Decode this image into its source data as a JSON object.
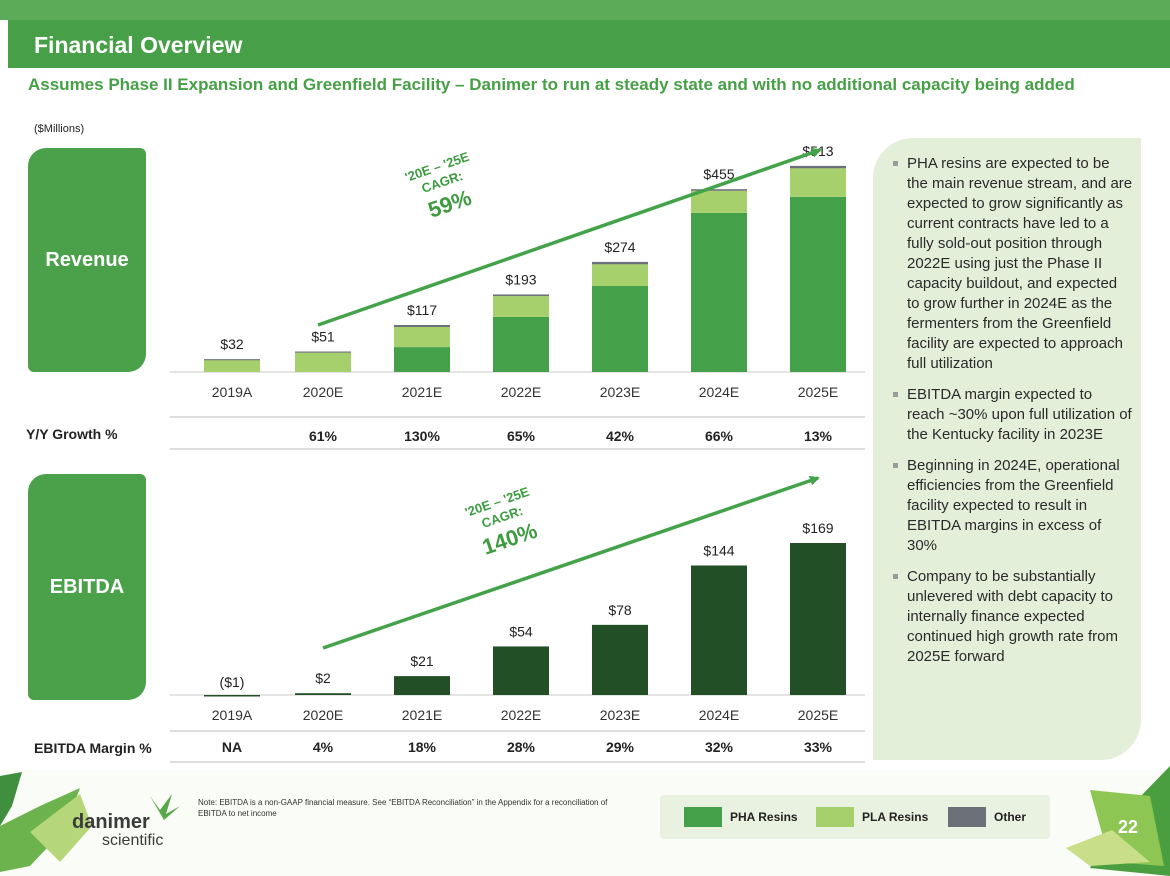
{
  "header": {
    "title": "Financial Overview",
    "subtitle": "Assumes Phase II Expansion and Greenfield Facility – Danimer to run at steady state and with no additional capacity being added",
    "units": "($Millions)"
  },
  "chart_data": [
    {
      "type": "bar",
      "stacked": true,
      "section_label": "Revenue",
      "categories": [
        "2019A",
        "2020E",
        "2021E",
        "2022E",
        "2023E",
        "2024E",
        "2025E"
      ],
      "totals": [
        32,
        51,
        117,
        193,
        274,
        455,
        513
      ],
      "total_labels": [
        "$32",
        "$51",
        "$117",
        "$193",
        "$274",
        "$455",
        "$513"
      ],
      "series": [
        {
          "name": "PHA Resins",
          "color": "#45a04a",
          "values": [
            0,
            0,
            62,
            137,
            214,
            396,
            436
          ]
        },
        {
          "name": "PLA Resins",
          "color": "#a6d06b",
          "values": [
            29,
            48,
            50,
            52,
            54,
            55,
            71
          ]
        },
        {
          "name": "Other",
          "color": "#6c7078",
          "values": [
            3,
            3,
            5,
            4,
            6,
            4,
            6
          ]
        }
      ],
      "ylim": [
        0,
        560
      ],
      "cagr": {
        "line1": "'20E – '25E",
        "line2": "CAGR:",
        "value": "59%"
      },
      "growth_row": {
        "label": "Y/Y Growth %",
        "values": [
          "",
          "61%",
          "130%",
          "65%",
          "42%",
          "66%",
          "13%"
        ]
      }
    },
    {
      "type": "bar",
      "section_label": "EBITDA",
      "categories": [
        "2019A",
        "2020E",
        "2021E",
        "2022E",
        "2023E",
        "2024E",
        "2025E"
      ],
      "values": [
        -1,
        2,
        21,
        54,
        78,
        144,
        169
      ],
      "value_labels": [
        "($1)",
        "$2",
        "$21",
        "$54",
        "$78",
        "$144",
        "$169"
      ],
      "color": "#234f27",
      "ylim": [
        -2,
        185
      ],
      "cagr": {
        "line1": "'20E – '25E",
        "line2": "CAGR:",
        "value": "140%"
      },
      "margin_row": {
        "label": "EBITDA Margin %",
        "values": [
          "NA",
          "4%",
          "18%",
          "28%",
          "29%",
          "32%",
          "33%"
        ]
      }
    }
  ],
  "bullets": [
    "PHA resins are expected to be the main revenue stream, and are expected to grow significantly as current contracts have led to a fully sold-out position through 2022E using just the Phase II capacity buildout, and expected to grow further in 2024E as the fermenters from the Greenfield facility are expected to approach full utilization",
    "EBITDA margin expected to reach ~30% upon full utilization of the Kentucky facility in 2023E",
    "Beginning in 2024E, operational efficiencies from the Greenfield facility expected to result in EBITDA margins in excess of 30%",
    "Company to be substantially unlevered with debt capacity to internally finance expected continued high growth rate from 2025E forward"
  ],
  "footer": {
    "note": "Note: EBITDA is a non-GAAP financial measure.  See “EBITDA Reconciliation” in the Appendix for a reconciliation of EBITDA to net income",
    "logo_line1": "danimer",
    "logo_line2": "scientific",
    "page_number": "22",
    "legend": [
      {
        "label": "PHA Resins",
        "color": "#45a04a"
      },
      {
        "label": "PLA Resins",
        "color": "#a6d06b"
      },
      {
        "label": "Other",
        "color": "#6c7078"
      }
    ]
  }
}
